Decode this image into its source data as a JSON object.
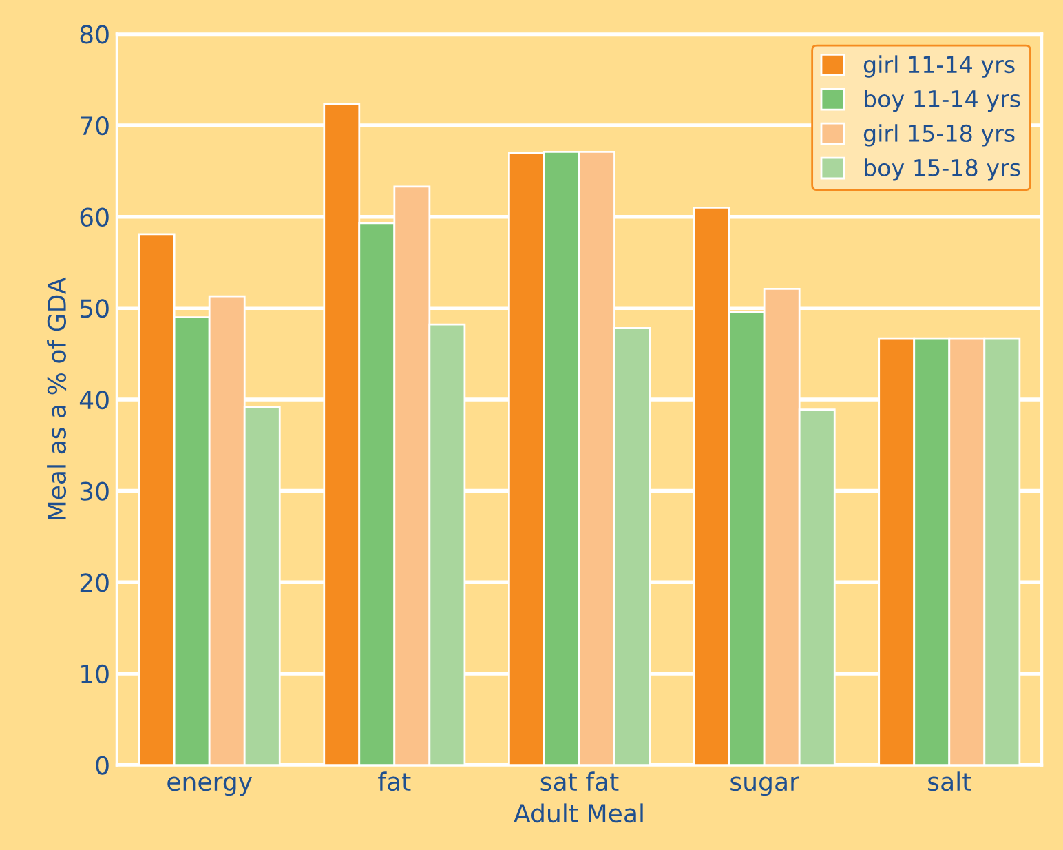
{
  "chart_data": {
    "type": "bar",
    "xlabel": "Adult Meal",
    "ylabel": "Meal as a % of GDA",
    "categories": [
      "energy",
      "fat",
      "sat fat",
      "sugar",
      "salt"
    ],
    "series": [
      {
        "name": "girl 11-14 yrs",
        "color": "#f58b1f",
        "values": [
          58.1,
          72.3,
          67.0,
          61.0,
          46.7
        ]
      },
      {
        "name": "boy 11-14 yrs",
        "color": "#7ac473",
        "values": [
          49.0,
          59.3,
          67.1,
          49.6,
          46.7
        ]
      },
      {
        "name": "girl 15-18 yrs",
        "color": "#fbc189",
        "values": [
          51.3,
          63.3,
          67.1,
          52.1,
          46.7
        ]
      },
      {
        "name": "boy 15-18 yrs",
        "color": "#a9d69d",
        "values": [
          39.2,
          48.2,
          47.8,
          38.9,
          46.7
        ]
      }
    ],
    "ylim": [
      0,
      80
    ],
    "yticks": [
      0,
      10,
      20,
      30,
      40,
      50,
      60,
      70,
      80
    ],
    "grid": "y",
    "legend": "top right"
  }
}
